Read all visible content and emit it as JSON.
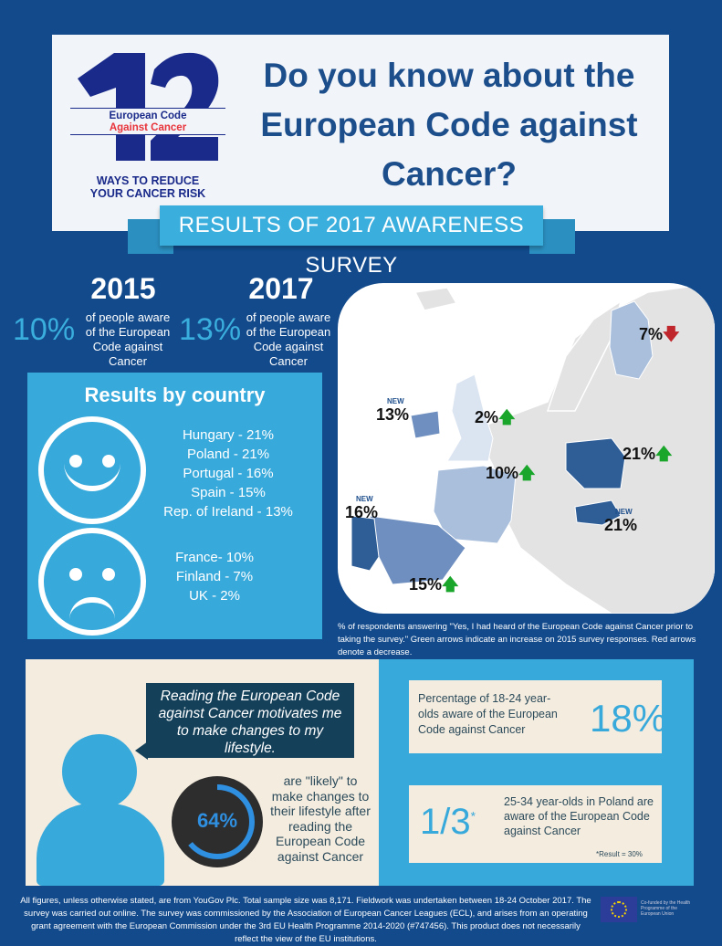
{
  "logo": {
    "number": "12",
    "line1": "European Code",
    "line2": "Against Cancer",
    "tagline1": "WAYS TO REDUCE",
    "tagline2": "YOUR CANCER RISK"
  },
  "title": "Do you know about the European Code against Cancer?",
  "banner": "RESULTS OF 2017 AWARENESS SURVEY",
  "years": [
    {
      "year": "2015",
      "value": "10%",
      "text": "of people aware of the European Code against Cancer"
    },
    {
      "year": "2017",
      "value": "13%",
      "text": "of people aware of the European Code against Cancer"
    }
  ],
  "results": {
    "title": "Results by country",
    "happy": [
      "Hungary - 21%",
      "Poland - 21%",
      "Portugal - 16%",
      "Spain - 15%",
      "Rep. of Ireland - 13%"
    ],
    "sad": [
      "France- 10%",
      "Finland - 7%",
      "UK - 2%"
    ]
  },
  "map": {
    "labels": [
      {
        "country": "Finland",
        "value": "7%",
        "change": "down",
        "new": ""
      },
      {
        "country": "UK",
        "value": "2%",
        "change": "up",
        "new": ""
      },
      {
        "country": "Ireland",
        "value": "13%",
        "change": "",
        "new": "NEW"
      },
      {
        "country": "France",
        "value": "10%",
        "change": "up",
        "new": ""
      },
      {
        "country": "Poland",
        "value": "21%",
        "change": "up",
        "new": ""
      },
      {
        "country": "Hungary",
        "value": "21%",
        "change": "",
        "new": "NEW"
      },
      {
        "country": "Portugal",
        "value": "16%",
        "change": "",
        "new": "NEW"
      },
      {
        "country": "Spain",
        "value": "15%",
        "change": "up",
        "new": ""
      }
    ],
    "colors": {
      "increase": "#1aa52b",
      "decrease": "#c0272d"
    }
  },
  "map_note": "% of respondents answering \"Yes, I had heard of the European Code against Cancer prior to taking the survey.\"   Green arrows indicate an increase on 2015 survey responses.  Red arrows denote a decrease.",
  "quote": "Reading the European Code against Cancer motivates me to make changes to my lifestyle.",
  "likely": {
    "value": "64%",
    "fraction": 0.64,
    "text": "are \"likely\" to make changes to their lifestyle  after reading the European Code against Cancer"
  },
  "youth": {
    "text": "Percentage of 18-24 year-olds aware of the European Code against Cancer",
    "value": "18%"
  },
  "poland": {
    "value": "1/3",
    "star": "*",
    "text": "25-34 year-olds in Poland are aware of the European Code against Cancer",
    "footnote": "*Result = 30%"
  },
  "footer": "All figures, unless otherwise stated, are from YouGov Plc. Total sample size was 8,171. Fieldwork was undertaken between 18-24 October 2017. The survey was carried out online. The survey was commissioned by the Association of European Cancer Leagues (ECL), and arises from an operating grant agreement with the European Commission under the 3rd EU Health Programme 2014-2020 (#747456). This product does not necessarily reflect the view of the EU institutions.",
  "eu_label": "Co-funded by the Health Programme of the European Union"
}
